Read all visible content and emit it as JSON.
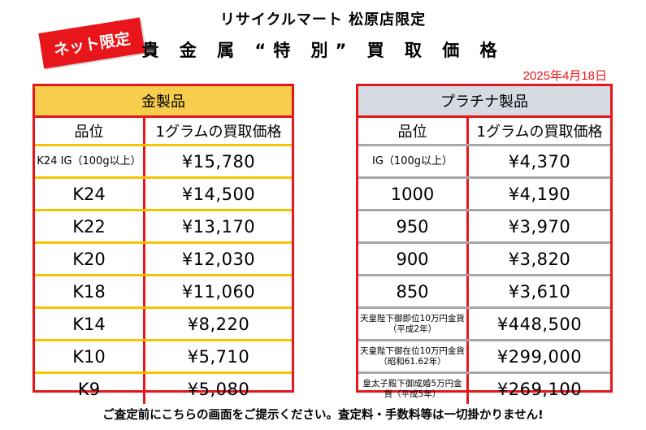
{
  "badge": "ネット限定",
  "store_name": "リサイクルマート 松原店限定",
  "title": "貴 金 属 “特 別” 買 取 価 格",
  "date": "2025年4月18日",
  "gold": {
    "header": "金製品",
    "col_grade": "品位",
    "col_price": "1グラムの買取価格",
    "rows": [
      {
        "grade": "K24 IG（100g以上）",
        "price": "¥15,780"
      },
      {
        "grade": "K24",
        "price": "¥14,500"
      },
      {
        "grade": "K22",
        "price": "¥13,170"
      },
      {
        "grade": "K20",
        "price": "¥12,030"
      },
      {
        "grade": "K18",
        "price": "¥11,060"
      },
      {
        "grade": "K14",
        "price": "¥8,220"
      },
      {
        "grade": "K10",
        "price": "¥5,710"
      },
      {
        "grade": "K9",
        "price": "¥5,080"
      }
    ]
  },
  "platinum": {
    "header": "プラチナ製品",
    "col_grade": "品位",
    "col_price": "1グラムの買取価格",
    "rows": [
      {
        "grade": "IG（100g以上）",
        "price": "¥4,370"
      },
      {
        "grade": "1000",
        "price": "¥4,190"
      },
      {
        "grade": "950",
        "price": "¥3,970"
      },
      {
        "grade": "900",
        "price": "¥3,820"
      },
      {
        "grade": "850",
        "price": "¥3,610"
      },
      {
        "grade": "天皇陛下御即位10万円金貨（平成2年）",
        "price": "¥448,500"
      },
      {
        "grade": "天皇陛下御在位10万円金貨（昭和61.62年）",
        "price": "¥299,000"
      },
      {
        "grade": "皇太子殿下御成婚5万円金貨（平成5年）",
        "price": "¥269,100"
      }
    ]
  },
  "footer": "ご査定前にこちらの画面をご提示ください。査定料・手数料等は一切掛かりません!"
}
